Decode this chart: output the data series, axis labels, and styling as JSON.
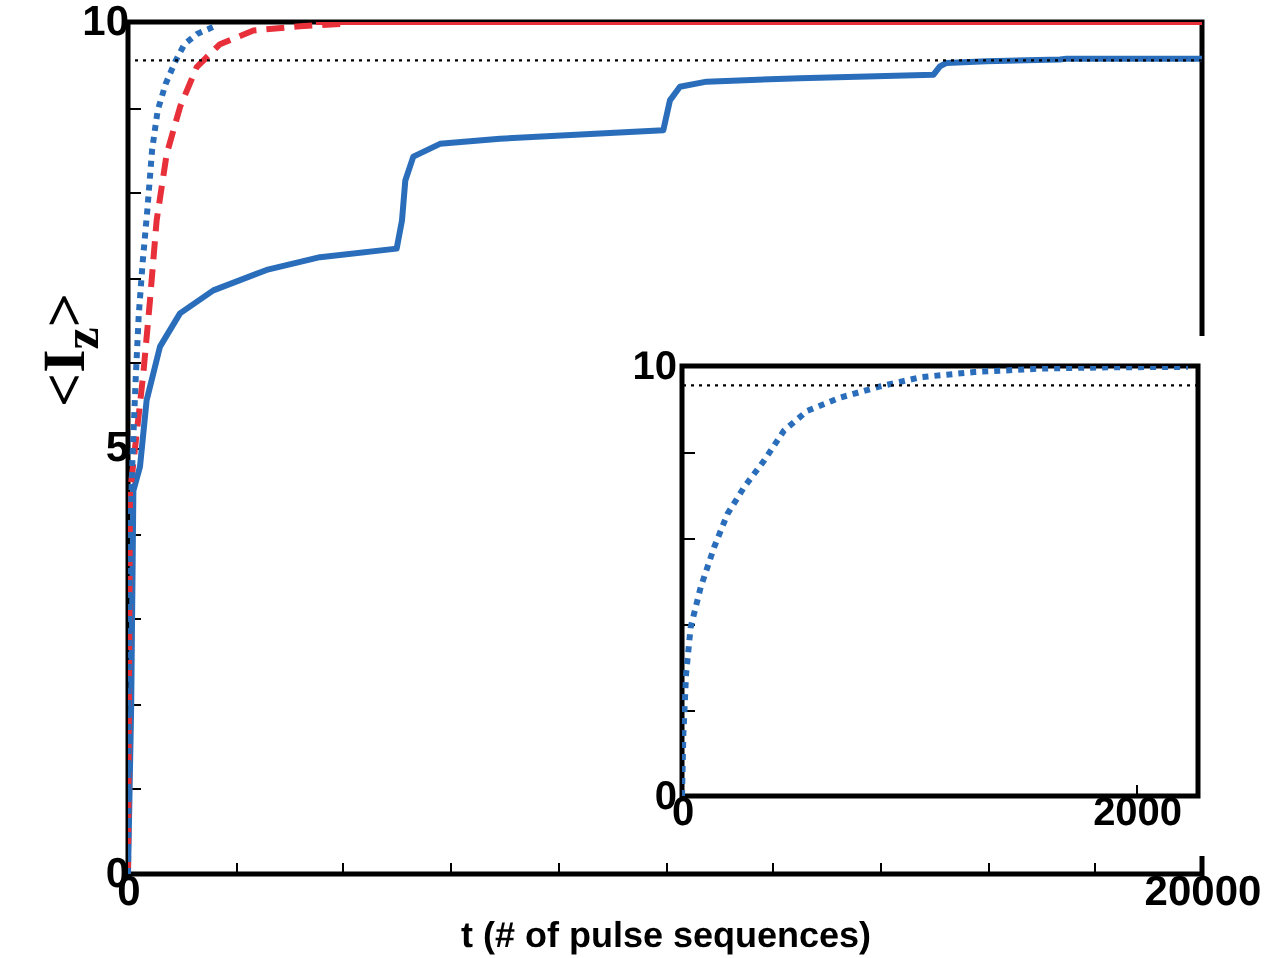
{
  "chart_data": [
    {
      "type": "line",
      "xlabel": "t  (# of pulse sequences)",
      "ylabel": "<I$_{z}$>",
      "xlim": [
        0,
        20000
      ],
      "ylim": [
        0,
        10
      ],
      "xticks": [
        0,
        {
          "value": 2000,
          "label": null
        },
        {
          "value": 4000,
          "label": null
        },
        {
          "value": 6000,
          "label": null
        },
        {
          "value": 8000,
          "label": null
        },
        {
          "value": 10000,
          "label": null
        },
        {
          "value": 12000,
          "label": null
        },
        {
          "value": 14000,
          "label": null
        },
        {
          "value": 16000,
          "label": null
        },
        {
          "value": 18000,
          "label": null
        },
        20000
      ],
      "yticks": [
        0,
        {
          "value": 1,
          "label": null
        },
        {
          "value": 2,
          "label": null
        },
        {
          "value": 3,
          "label": null
        },
        {
          "value": 4,
          "label": null
        },
        5,
        {
          "value": 6,
          "label": null
        },
        {
          "value": 7,
          "label": null
        },
        {
          "value": 8,
          "label": null
        },
        {
          "value": 9,
          "label": null
        },
        10
      ],
      "ref_lines": [
        {
          "axis": "y",
          "value": 9.55,
          "color": "#000000",
          "line_style": "dotted"
        }
      ],
      "series": [
        {
          "color": "#2a6ebb",
          "line_style": "solid",
          "x": [
            0,
            60,
            100,
            223,
            347,
            596,
            968,
            1589,
            2582,
            3575,
            5003,
            5102,
            5164,
            5313,
            5810,
            6927,
            8789,
            9969,
            10092,
            10278,
            10774,
            12513,
            14997,
            15120,
            15243,
            15988,
            17354,
            17477,
            20000
          ],
          "values": [
            0,
            2,
            4.5,
            4.78,
            5.56,
            6.19,
            6.58,
            6.85,
            7.09,
            7.24,
            7.34,
            7.67,
            8.14,
            8.42,
            8.57,
            8.63,
            8.69,
            8.73,
            9.08,
            9.24,
            9.3,
            9.34,
            9.38,
            9.48,
            9.52,
            9.54,
            9.56,
            9.57,
            9.57
          ]
        },
        {
          "color": "#e8303a",
          "line_style": "dashed",
          "x": [
            0,
            37,
            161,
            285,
            409,
            533,
            720,
            968,
            1279,
            1713,
            2334,
            3203,
            4072
          ],
          "values": [
            0,
            4.47,
            5.17,
            5.87,
            6.73,
            7.67,
            8.45,
            9.0,
            9.47,
            9.74,
            9.9,
            9.95,
            9.98
          ]
        },
        {
          "color": "#2a6ebb",
          "line_style": "dotted",
          "x": [
            0,
            6,
            18,
            38,
            82,
            141,
            200,
            273,
            361,
            449,
            552,
            699,
            875,
            1051,
            1286,
            1580
          ],
          "values": [
            0,
            1.44,
            2.84,
            3.92,
            4.85,
            5.78,
            6.56,
            7.18,
            7.8,
            8.5,
            8.96,
            9.27,
            9.53,
            9.74,
            9.86,
            9.94
          ]
        },
        {
          "color": "#e8303a",
          "line_style": "solid",
          "x": [
            3500,
            20000
          ],
          "values": [
            10,
            10
          ]
        }
      ]
    },
    {
      "type": "line",
      "xlim": [
        0,
        2270
      ],
      "ylim": [
        0,
        10
      ],
      "xticks": [
        0,
        2000
      ],
      "yticks": [
        0,
        {
          "value": 2,
          "label": null
        },
        {
          "value": 4,
          "label": null
        },
        {
          "value": 6,
          "label": null
        },
        {
          "value": 8,
          "label": null
        },
        10
      ],
      "ref_lines": [
        {
          "axis": "y",
          "value": 9.55,
          "color": "#000000",
          "line_style": "dotted"
        }
      ],
      "series": [
        {
          "color": "#2a6ebb",
          "line_style": "dotted",
          "x": [
            0,
            6,
            18,
            38,
            82,
            141,
            200,
            273,
            361,
            449,
            552,
            699,
            875,
            1051,
            1286,
            1580,
            1874,
            2226
          ],
          "values": [
            0,
            1.44,
            2.84,
            3.92,
            4.85,
            5.78,
            6.56,
            7.18,
            7.8,
            8.5,
            8.96,
            9.27,
            9.53,
            9.74,
            9.86,
            9.94,
            9.97,
            9.98
          ]
        }
      ]
    }
  ]
}
